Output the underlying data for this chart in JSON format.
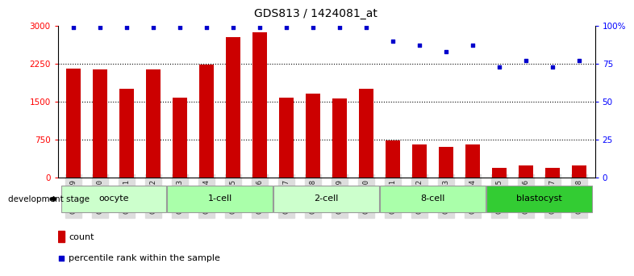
{
  "title": "GDS813 / 1424081_at",
  "samples": [
    "GSM22649",
    "GSM22650",
    "GSM22651",
    "GSM22652",
    "GSM22653",
    "GSM22654",
    "GSM22655",
    "GSM22656",
    "GSM22657",
    "GSM22658",
    "GSM22659",
    "GSM22660",
    "GSM22661",
    "GSM22662",
    "GSM22663",
    "GSM22664",
    "GSM22665",
    "GSM22666",
    "GSM22667",
    "GSM22668"
  ],
  "counts": [
    2150,
    2140,
    1750,
    2130,
    1580,
    2230,
    2780,
    2870,
    1580,
    1660,
    1560,
    1750,
    730,
    650,
    600,
    650,
    190,
    230,
    185,
    240
  ],
  "percentiles": [
    99,
    99,
    99,
    99,
    99,
    99,
    99,
    99,
    99,
    99,
    99,
    99,
    90,
    87,
    83,
    87,
    73,
    77,
    73,
    77
  ],
  "groups": [
    {
      "name": "oocyte",
      "start": 0,
      "end": 3,
      "color": "#ccffcc"
    },
    {
      "name": "1-cell",
      "start": 4,
      "end": 7,
      "color": "#aaffaa"
    },
    {
      "name": "2-cell",
      "start": 8,
      "end": 11,
      "color": "#ccffcc"
    },
    {
      "name": "8-cell",
      "start": 12,
      "end": 15,
      "color": "#aaffaa"
    },
    {
      "name": "blastocyst",
      "start": 16,
      "end": 19,
      "color": "#33cc33"
    }
  ],
  "bar_color": "#cc0000",
  "dot_color": "#0000cc",
  "ylim_left": [
    0,
    3000
  ],
  "ylim_right": [
    0,
    100
  ],
  "yticks_left": [
    0,
    750,
    1500,
    2250,
    3000
  ],
  "ytick_labels_left": [
    "0",
    "750",
    "1500",
    "2250",
    "3000"
  ],
  "yticks_right": [
    0,
    25,
    50,
    75,
    100
  ],
  "ytick_labels_right": [
    "0",
    "25",
    "50",
    "75",
    "100%"
  ],
  "legend_count_label": "count",
  "legend_percentile_label": "percentile rank within the sample",
  "stage_label": "development stage",
  "bg_color": "#ffffff",
  "xtick_bg": "#dddddd"
}
